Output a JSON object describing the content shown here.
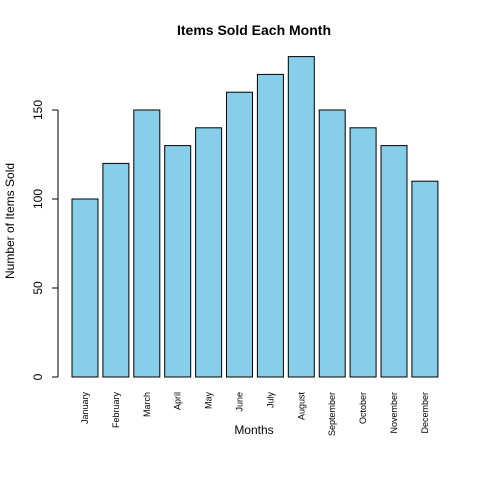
{
  "chart_data": {
    "type": "bar",
    "title": "Items Sold Each Month",
    "xlabel": "Months",
    "ylabel": "Number of Items Sold",
    "categories": [
      "January",
      "February",
      "March",
      "April",
      "May",
      "June",
      "July",
      "August",
      "September",
      "October",
      "November",
      "December"
    ],
    "values": [
      100,
      120,
      150,
      130,
      140,
      160,
      170,
      180,
      150,
      140,
      130,
      110
    ],
    "ylim": [
      0,
      180
    ],
    "yticks": [
      0,
      50,
      100,
      150
    ],
    "bar_color": "#87CEEB",
    "grid": false,
    "legend": "none"
  }
}
